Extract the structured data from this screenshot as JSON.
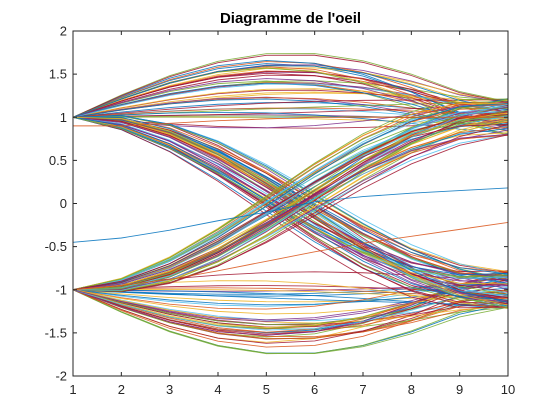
{
  "chart_data": {
    "type": "line",
    "title": "Diagramme de l'oeil",
    "xlabel": "",
    "ylabel": "",
    "xlim": [
      1,
      10
    ],
    "ylim": [
      -2,
      2
    ],
    "xticks": [
      "1",
      "2",
      "3",
      "4",
      "5",
      "6",
      "7",
      "8",
      "9",
      "10"
    ],
    "yticks": [
      "-2",
      "-1.5",
      "-1",
      "-0.5",
      "0",
      "0.5",
      "1",
      "1.5",
      "2"
    ],
    "grid": false,
    "legend": "none",
    "x": [
      1,
      2,
      3,
      4,
      5,
      6,
      7,
      8,
      9,
      10
    ],
    "palette": [
      "#0072bd",
      "#d95319",
      "#edb120",
      "#7e2f8e",
      "#77ac30",
      "#4dbeee",
      "#a2142f"
    ],
    "trace_families": [
      {
        "from": 1,
        "to": 1,
        "peak": 1.72,
        "min_peak": 0.78,
        "count": 45
      },
      {
        "from": -1,
        "to": -1,
        "peak": -1.72,
        "min_peak": -0.78,
        "count": 45
      },
      {
        "from": 1,
        "to": -1,
        "end_min": -0.78,
        "end_max": -1.22,
        "count": 55
      },
      {
        "from": -1,
        "to": 1,
        "end_min": 0.78,
        "end_max": 1.22,
        "count": 55
      }
    ],
    "extra_series": [
      {
        "values": [
          0.9,
          0.9,
          0.93,
          0.96,
          0.98,
          1.0,
          1.0,
          1.0,
          1.0,
          1.0
        ],
        "color": "#d95319"
      },
      {
        "values": [
          -0.45,
          -0.4,
          -0.31,
          -0.2,
          -0.1,
          0.02,
          0.08,
          0.12,
          0.15,
          0.18
        ],
        "color": "#0072bd"
      },
      {
        "values": [
          -1.0,
          -0.95,
          -0.88,
          -0.78,
          -0.67,
          -0.56,
          -0.46,
          -0.38,
          -0.3,
          -0.22
        ],
        "color": "#d95319"
      }
    ]
  }
}
